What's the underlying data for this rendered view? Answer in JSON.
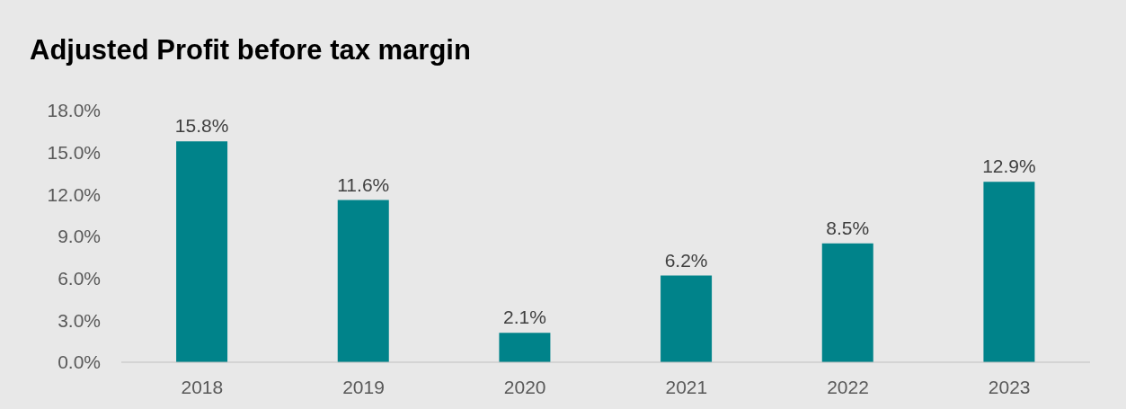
{
  "chart_data": {
    "type": "bar",
    "title": "Adjusted Profit before tax margin",
    "categories": [
      "2018",
      "2019",
      "2020",
      "2021",
      "2022",
      "2023"
    ],
    "values": [
      15.8,
      11.6,
      2.1,
      6.2,
      8.5,
      12.9
    ],
    "value_labels": [
      "15.8%",
      "11.6%",
      "2.1%",
      "6.2%",
      "8.5%",
      "12.9%"
    ],
    "color": "#00838a",
    "ylim": [
      0,
      18
    ],
    "yticks": [
      {
        "value": 0,
        "label": "0.0%"
      },
      {
        "value": 3,
        "label": "3.0%"
      },
      {
        "value": 6,
        "label": "6.0%"
      },
      {
        "value": 9,
        "label": "9.0%"
      },
      {
        "value": 12,
        "label": "12.0%"
      },
      {
        "value": 15,
        "label": "15.0%"
      },
      {
        "value": 18,
        "label": "18.0%"
      }
    ],
    "grid": false,
    "legend": false
  }
}
